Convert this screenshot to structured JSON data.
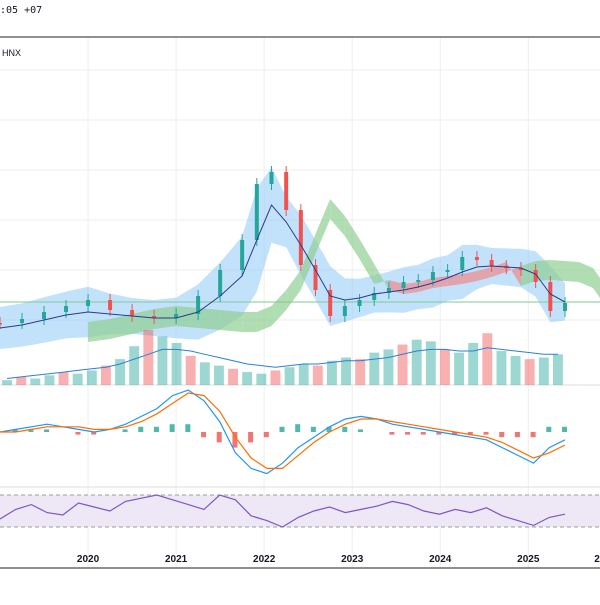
{
  "header": {
    "time_text": ":05 +07",
    "symbol_text": "HNX"
  },
  "colors": {
    "price_line": "#2b3a90",
    "ma_line": "#3b6fd4",
    "band_fill": "#90caf9",
    "cloud_bull": "#8fcf92",
    "cloud_bear": "#f08a8a",
    "bar_up": "#26a69a",
    "bar_down": "#ef5350",
    "volume_avg": "#2a7fd6",
    "macd_line": "#2196f3",
    "signal_line": "#ff6d00",
    "rsi_line": "#7e57c2",
    "rsi_band": "#ede7f6",
    "flat_line": "#81c995",
    "grid": "#eeeeee",
    "border": "#222222"
  },
  "chart_data": [
    {
      "type": "line",
      "pane": "price",
      "x_axis_type": "date",
      "x_ticks": [
        "2020",
        "2021",
        "2022",
        "2023",
        "2024",
        "2025",
        "2"
      ],
      "x": [
        "2019-01",
        "2019-04",
        "2019-07",
        "2019-10",
        "2020-01",
        "2020-04",
        "2020-07",
        "2020-10",
        "2021-01",
        "2021-04",
        "2021-07",
        "2021-10",
        "2021-12",
        "2022-02",
        "2022-04",
        "2022-06",
        "2022-08",
        "2022-10",
        "2022-12",
        "2023-02",
        "2023-04",
        "2023-06",
        "2023-08",
        "2023-10",
        "2023-12",
        "2024-02",
        "2024-04",
        "2024-06",
        "2024-08",
        "2024-10",
        "2024-12",
        "2025-02",
        "2025-04",
        "2025-06"
      ],
      "series": [
        {
          "values": [
            323,
            319,
            312,
            306,
            300,
            310,
            316,
            318,
            314,
            296,
            270,
            240,
            184,
            172,
            210,
            265,
            290,
            316,
            306,
            300,
            293,
            288,
            282,
            280,
            272,
            270,
            257,
            260,
            266,
            268,
            270,
            282,
            311,
            303
          ]
        },
        {
          "values": [
            328,
            325,
            320,
            315,
            312,
            314,
            316,
            318,
            318,
            312,
            296,
            276,
            240,
            205,
            222,
            245,
            270,
            296,
            300,
            298,
            294,
            292,
            290,
            287,
            283,
            278,
            272,
            267,
            266,
            267,
            268,
            274,
            294,
            302
          ]
        }
      ]
    },
    {
      "type": "bar",
      "pane": "volume",
      "values": [
        3,
        5,
        4,
        6,
        8,
        7,
        9,
        12,
        16,
        24,
        34,
        30,
        26,
        18,
        14,
        12,
        10,
        8,
        7,
        9,
        11,
        13,
        12,
        15,
        17,
        16,
        20,
        22,
        25,
        28,
        27,
        22,
        20,
        26,
        32,
        21,
        18,
        16,
        17,
        19
      ],
      "avg_values": [
        4,
        5,
        6,
        7,
        8,
        9,
        10,
        11,
        13,
        16,
        19,
        22,
        22,
        21,
        19,
        17,
        15,
        13,
        12,
        11,
        12,
        13,
        13,
        14,
        15,
        15,
        16,
        17,
        19,
        21,
        22,
        22,
        21,
        21,
        23,
        22,
        21,
        20,
        19,
        19
      ]
    },
    {
      "type": "line",
      "pane": "macd",
      "series": [
        {
          "values": [
            0,
            1,
            2,
            3,
            2,
            1,
            0,
            1,
            3,
            6,
            9,
            14,
            18,
            12,
            4,
            -8,
            -14,
            -16,
            -12,
            -6,
            -2,
            2,
            5,
            6,
            5,
            3,
            2,
            1,
            0,
            -1,
            -2,
            -3,
            -6,
            -9,
            -12,
            -6,
            -3
          ]
        },
        {
          "values": [
            0,
            0,
            1,
            2,
            2,
            2,
            1,
            1,
            2,
            4,
            7,
            11,
            15,
            14,
            8,
            -2,
            -10,
            -14,
            -14,
            -9,
            -4,
            0,
            3,
            5,
            5,
            4,
            3,
            2,
            1,
            0,
            -1,
            -2,
            -4,
            -7,
            -10,
            -8,
            -5
          ]
        }
      ],
      "histogram": [
        0,
        1,
        1,
        1,
        0,
        -1,
        -1,
        0,
        1,
        2,
        2,
        3,
        3,
        -2,
        -4,
        -6,
        -4,
        -2,
        2,
        3,
        2,
        2,
        2,
        1,
        0,
        -1,
        -1,
        -1,
        -1,
        -1,
        -1,
        -1,
        -2,
        -2,
        -2,
        2,
        2
      ]
    },
    {
      "type": "line",
      "pane": "rsi",
      "series": [
        {
          "values": [
            40,
            52,
            58,
            48,
            45,
            60,
            55,
            50,
            62,
            66,
            70,
            64,
            58,
            52,
            70,
            64,
            44,
            38,
            30,
            42,
            50,
            55,
            48,
            52,
            56,
            62,
            58,
            50,
            46,
            52,
            48,
            54,
            44,
            38,
            32,
            42,
            46
          ]
        }
      ]
    }
  ]
}
